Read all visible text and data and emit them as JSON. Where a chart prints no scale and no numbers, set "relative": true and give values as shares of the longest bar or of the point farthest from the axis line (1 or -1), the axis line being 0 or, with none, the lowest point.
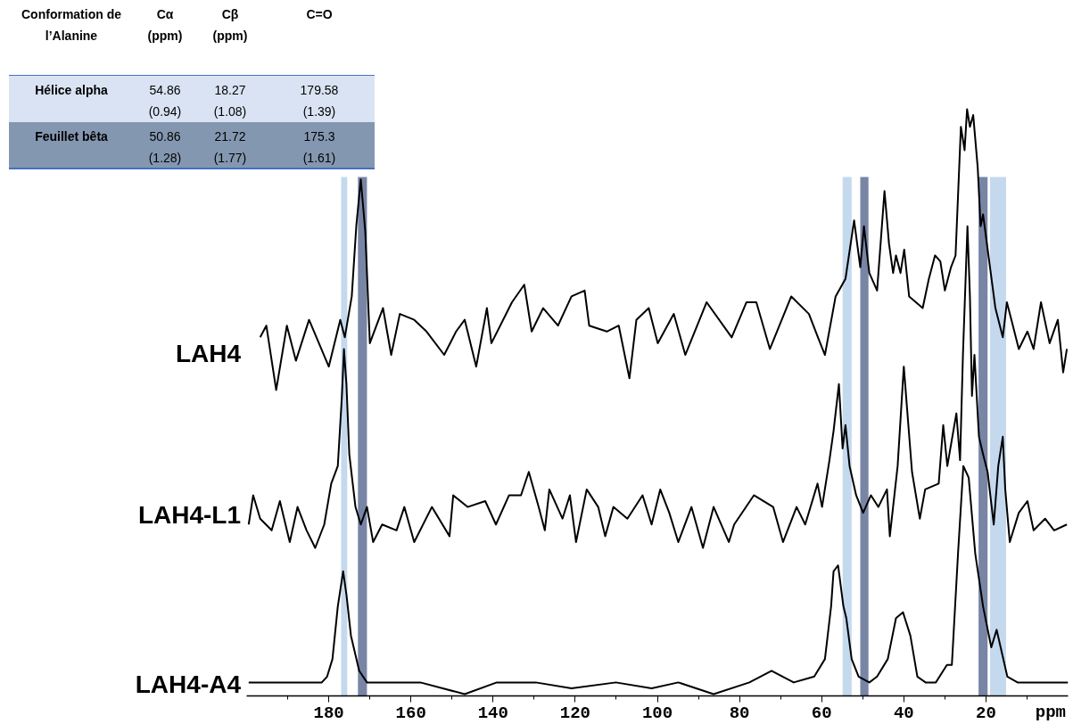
{
  "chart_data": {
    "type": "line",
    "relative": true,
    "xlabel": "ppm",
    "xlim": [
      200,
      0
    ],
    "xticks": [
      180,
      160,
      140,
      120,
      100,
      80,
      60,
      40,
      20
    ],
    "line_style": "solid",
    "marker": "none",
    "annotations": [
      "Conformation de\nl’Alanine",
      "Cα\n(ppm)",
      "Cβ\n(ppm)",
      "C=O",
      "Hélice alpha",
      "54.86\n(0.94)",
      "18.27\n(1.08)",
      "179.58\n(1.39)",
      "Feuillet bêta",
      "50.86\n(1.28)",
      "21.72\n(1.77)",
      "175.3\n(1.61)"
    ],
    "bands": [
      {
        "axis": "x",
        "from": 177.0,
        "to": 175.5,
        "color": "#c5d9ee"
      },
      {
        "axis": "x",
        "from": 172.9,
        "to": 170.7,
        "color": "#7885a5"
      },
      {
        "axis": "x",
        "from": 54.9,
        "to": 52.7,
        "color": "#c5d9ee"
      },
      {
        "axis": "x",
        "from": 50.6,
        "to": 48.6,
        "color": "#7885a5"
      },
      {
        "axis": "x",
        "from": 21.8,
        "to": 19.6,
        "color": "#7885a5"
      },
      {
        "axis": "x",
        "from": 19.0,
        "to": 15.1,
        "color": "#c5d9ee"
      }
    ],
    "series": [
      {
        "name": "LAH4",
        "color": "#000000",
        "x": [
          196.7,
          195.2,
          192.8,
          190.2,
          188.0,
          184.8,
          180.0,
          177.2,
          176.1,
          174.4,
          173.3,
          172.2,
          171.1,
          170.0,
          166.8,
          164.8,
          162.7,
          159.2,
          156.2,
          151.9,
          149.0,
          146.9,
          144.1,
          141.5,
          140.4,
          135.4,
          132.4,
          130.6,
          127.8,
          124.2,
          120.9,
          117.7,
          116.6,
          112.3,
          109.4,
          106.8,
          105.1,
          102.1,
          99.9,
          96.0,
          93.2,
          88.0,
          81.9,
          78.3,
          75.9,
          72.6,
          67.4,
          63.1,
          60.9,
          59.2,
          56.6,
          54.2,
          52.1,
          50.6,
          49.7,
          48.4,
          46.5,
          44.7,
          43.6,
          42.6,
          41.9,
          40.8,
          39.9,
          38.7,
          35.4,
          33.9,
          32.4,
          31.1,
          30.0,
          28.5,
          27.4,
          26.1,
          25.2,
          24.6,
          23.9,
          23.1,
          22.0,
          21.3,
          20.7,
          19.2,
          17.7,
          15.9,
          14.9,
          13.8,
          12.0,
          9.9,
          8.4,
          6.6,
          4.5,
          2.5,
          1.2,
          0.3
        ],
        "values": [
          0.61,
          0.63,
          0.52,
          0.63,
          0.57,
          0.64,
          0.56,
          0.64,
          0.61,
          0.68,
          0.8,
          0.88,
          0.79,
          0.6,
          0.66,
          0.58,
          0.65,
          0.64,
          0.62,
          0.58,
          0.62,
          0.64,
          0.56,
          0.66,
          0.6,
          0.67,
          0.7,
          0.62,
          0.66,
          0.63,
          0.68,
          0.69,
          0.63,
          0.62,
          0.63,
          0.54,
          0.64,
          0.66,
          0.6,
          0.65,
          0.58,
          0.67,
          0.61,
          0.67,
          0.67,
          0.59,
          0.68,
          0.65,
          0.61,
          0.58,
          0.68,
          0.71,
          0.81,
          0.73,
          0.8,
          0.72,
          0.69,
          0.86,
          0.77,
          0.72,
          0.75,
          0.72,
          0.76,
          0.68,
          0.66,
          0.71,
          0.75,
          0.74,
          0.69,
          0.73,
          0.75,
          0.97,
          0.93,
          1.0,
          0.97,
          0.99,
          0.9,
          0.8,
          0.82,
          0.74,
          0.66,
          0.61,
          0.67,
          0.64,
          0.59,
          0.62,
          0.59,
          0.67,
          0.6,
          0.64,
          0.55,
          0.59
        ]
      },
      {
        "name": "LAH4-L1",
        "color": "#000000",
        "x": [
          199.5,
          198.4,
          196.7,
          193.9,
          191.9,
          189.5,
          187.6,
          185.4,
          183.3,
          181.1,
          179.4,
          177.8,
          176.8,
          176.3,
          175.7,
          175.0,
          173.5,
          172.2,
          170.7,
          169.2,
          167.0,
          163.5,
          161.6,
          159.2,
          154.9,
          150.6,
          149.7,
          146.2,
          141.9,
          139.3,
          136.1,
          133.2,
          131.3,
          128.9,
          127.4,
          126.3,
          123.1,
          121.3,
          119.8,
          117.2,
          114.4,
          112.7,
          110.7,
          107.3,
          103.6,
          101.4,
          99.3,
          97.1,
          94.9,
          91.7,
          88.9,
          86.3,
          82.6,
          81.3,
          76.5,
          71.8,
          69.4,
          66.1,
          64.0,
          61.0,
          59.9,
          58.1,
          57.1,
          55.8,
          54.9,
          54.2,
          53.2,
          51.6,
          49.9,
          48.0,
          46.2,
          44.1,
          43.4,
          41.5,
          40.0,
          38.0,
          36.1,
          34.8,
          31.5,
          30.4,
          29.4,
          27.2,
          26.3,
          25.6,
          24.5,
          23.9,
          23.4,
          22.8,
          21.7,
          20.7,
          19.6,
          18.1,
          17.0,
          15.9,
          15.3,
          14.2,
          12.0,
          9.9,
          8.4,
          5.6,
          3.4,
          0.3
        ],
        "values": [
          0.29,
          0.34,
          0.3,
          0.28,
          0.33,
          0.26,
          0.32,
          0.28,
          0.25,
          0.29,
          0.36,
          0.39,
          0.51,
          0.59,
          0.53,
          0.41,
          0.32,
          0.29,
          0.32,
          0.26,
          0.29,
          0.28,
          0.32,
          0.26,
          0.32,
          0.27,
          0.34,
          0.32,
          0.33,
          0.29,
          0.34,
          0.34,
          0.38,
          0.32,
          0.28,
          0.35,
          0.3,
          0.34,
          0.26,
          0.35,
          0.32,
          0.27,
          0.32,
          0.3,
          0.34,
          0.29,
          0.35,
          0.31,
          0.26,
          0.32,
          0.25,
          0.32,
          0.26,
          0.29,
          0.34,
          0.32,
          0.26,
          0.32,
          0.29,
          0.36,
          0.32,
          0.4,
          0.45,
          0.53,
          0.42,
          0.46,
          0.39,
          0.34,
          0.31,
          0.34,
          0.32,
          0.35,
          0.27,
          0.39,
          0.56,
          0.38,
          0.3,
          0.35,
          0.36,
          0.46,
          0.39,
          0.48,
          0.4,
          0.58,
          0.8,
          0.68,
          0.51,
          0.58,
          0.44,
          0.41,
          0.38,
          0.29,
          0.39,
          0.44,
          0.35,
          0.26,
          0.31,
          0.33,
          0.28,
          0.3,
          0.28,
          0.29
        ]
      },
      {
        "name": "LAH4-A4",
        "color": "#000000",
        "x": [
          199.5,
          195.5,
          191.2,
          186.8,
          181.7,
          180.4,
          179.1,
          177.8,
          176.5,
          175.7,
          174.6,
          172.6,
          170.7,
          164.2,
          157.7,
          146.9,
          139.1,
          129.6,
          120.9,
          110.1,
          101.4,
          94.9,
          86.3,
          77.6,
          72.2,
          66.8,
          61.8,
          59.2,
          57.7,
          57.1,
          56.0,
          54.7,
          54.0,
          52.7,
          51.0,
          48.4,
          46.5,
          43.9,
          41.9,
          40.2,
          38.4,
          36.7,
          34.7,
          32.2,
          29.5,
          28.3,
          26.8,
          25.5,
          24.2,
          22.6,
          20.7,
          18.7,
          17.4,
          16.1,
          14.8,
          12.3,
          7.7,
          3.8,
          0.0
        ],
        "values": [
          0.02,
          0.02,
          0.02,
          0.02,
          0.02,
          0.03,
          0.06,
          0.15,
          0.21,
          0.17,
          0.1,
          0.04,
          0.02,
          0.02,
          0.02,
          0.0,
          0.02,
          0.02,
          0.01,
          0.02,
          0.01,
          0.02,
          0.0,
          0.02,
          0.04,
          0.02,
          0.03,
          0.06,
          0.15,
          0.21,
          0.22,
          0.15,
          0.13,
          0.06,
          0.03,
          0.02,
          0.03,
          0.06,
          0.13,
          0.14,
          0.1,
          0.03,
          0.02,
          0.02,
          0.05,
          0.05,
          0.24,
          0.39,
          0.37,
          0.24,
          0.15,
          0.08,
          0.11,
          0.07,
          0.03,
          0.02,
          0.02,
          0.02,
          0.02
        ]
      }
    ]
  }
}
